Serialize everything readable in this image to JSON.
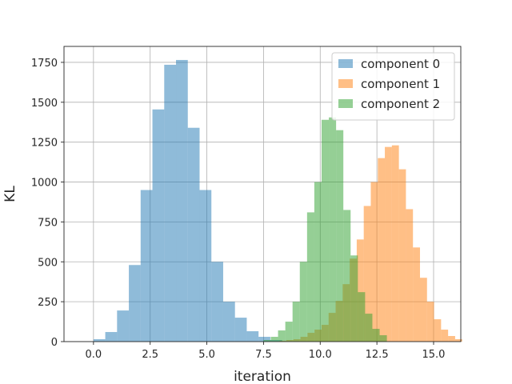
{
  "chart_data": {
    "type": "bar",
    "subtype": "histogram",
    "title": "",
    "xlabel": "iteration",
    "ylabel": "KL",
    "xlim": [
      -1.3,
      16.2
    ],
    "ylim": [
      0,
      1850
    ],
    "xticks": [
      0.0,
      2.5,
      5.0,
      7.5,
      10.0,
      12.5,
      15.0
    ],
    "xtick_labels": [
      "0.0",
      "2.5",
      "5.0",
      "7.5",
      "10.0",
      "12.5",
      "15.0"
    ],
    "yticks": [
      0,
      250,
      500,
      750,
      1000,
      1250,
      1500,
      1750
    ],
    "ytick_labels": [
      "0",
      "250",
      "500",
      "750",
      "1000",
      "1250",
      "1500",
      "1750"
    ],
    "grid": true,
    "legend_position": "top-right",
    "series": [
      {
        "name": "component 0",
        "color": "#1f77b4",
        "alpha": 0.5,
        "bin_width": 0.52,
        "bin_start": 0.0,
        "counts": [
          15,
          60,
          195,
          480,
          950,
          1455,
          1735,
          1765,
          1340,
          950,
          500,
          250,
          150,
          65,
          30,
          10
        ]
      },
      {
        "name": "component 1",
        "color": "#ff7f0e",
        "alpha": 0.5,
        "bin_width": 0.31,
        "bin_start": 8.2,
        "counts": [
          5,
          10,
          15,
          30,
          55,
          75,
          105,
          180,
          255,
          360,
          520,
          640,
          850,
          1000,
          1150,
          1220,
          1230,
          1080,
          830,
          590,
          400,
          250,
          140,
          75,
          35,
          15
        ]
      },
      {
        "name": "component 2",
        "color": "#2ca02c",
        "alpha": 0.5,
        "bin_width": 0.32,
        "bin_start": 7.5,
        "counts": [
          10,
          30,
          70,
          125,
          250,
          500,
          810,
          1000,
          1390,
          1405,
          1325,
          825,
          540,
          310,
          175,
          80,
          40
        ]
      }
    ]
  }
}
